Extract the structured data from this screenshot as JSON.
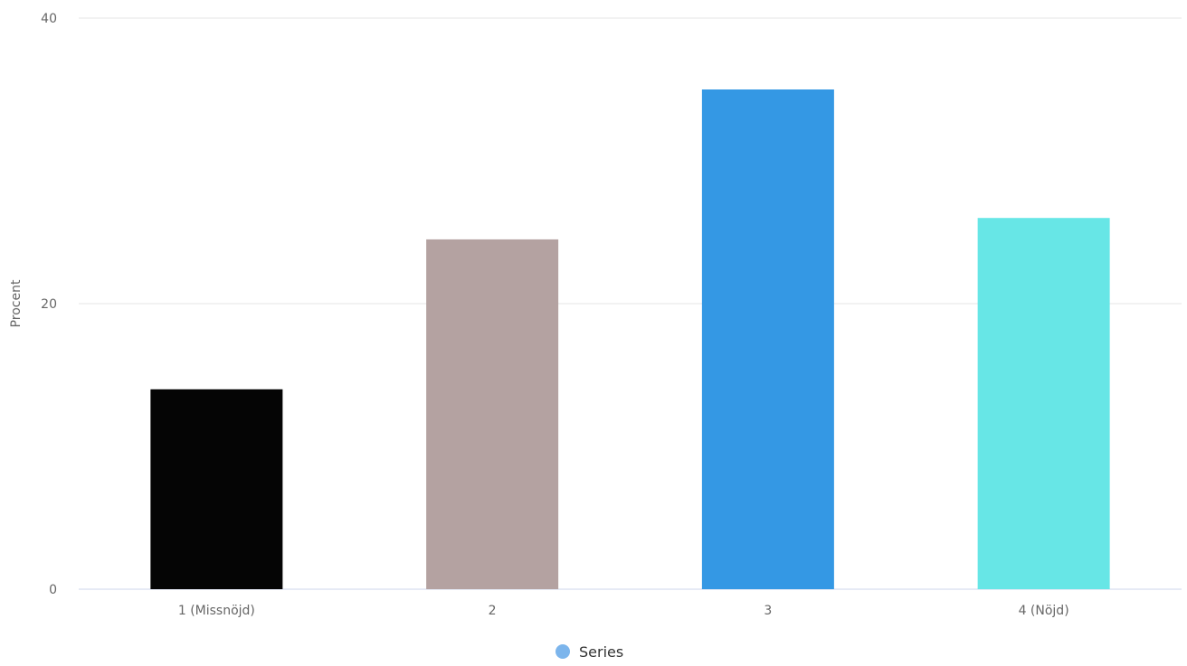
{
  "chart_data": {
    "type": "bar",
    "categories": [
      "1 (Missnöjd)",
      "2",
      "3",
      "4 (Nöjd)"
    ],
    "series": [
      {
        "name": "Series",
        "values": [
          14,
          24.5,
          35,
          26
        ]
      }
    ],
    "bar_colors": [
      "#050505",
      "#b4a2a1",
      "#3498e4",
      "#67e6e6"
    ],
    "legend_color": "#7cb5ec",
    "title": "",
    "xlabel": "",
    "ylabel": "Procent",
    "ylim": [
      0,
      40
    ],
    "yticks": [
      0,
      20,
      40
    ],
    "grid": true,
    "legend_position": "bottom-center"
  }
}
